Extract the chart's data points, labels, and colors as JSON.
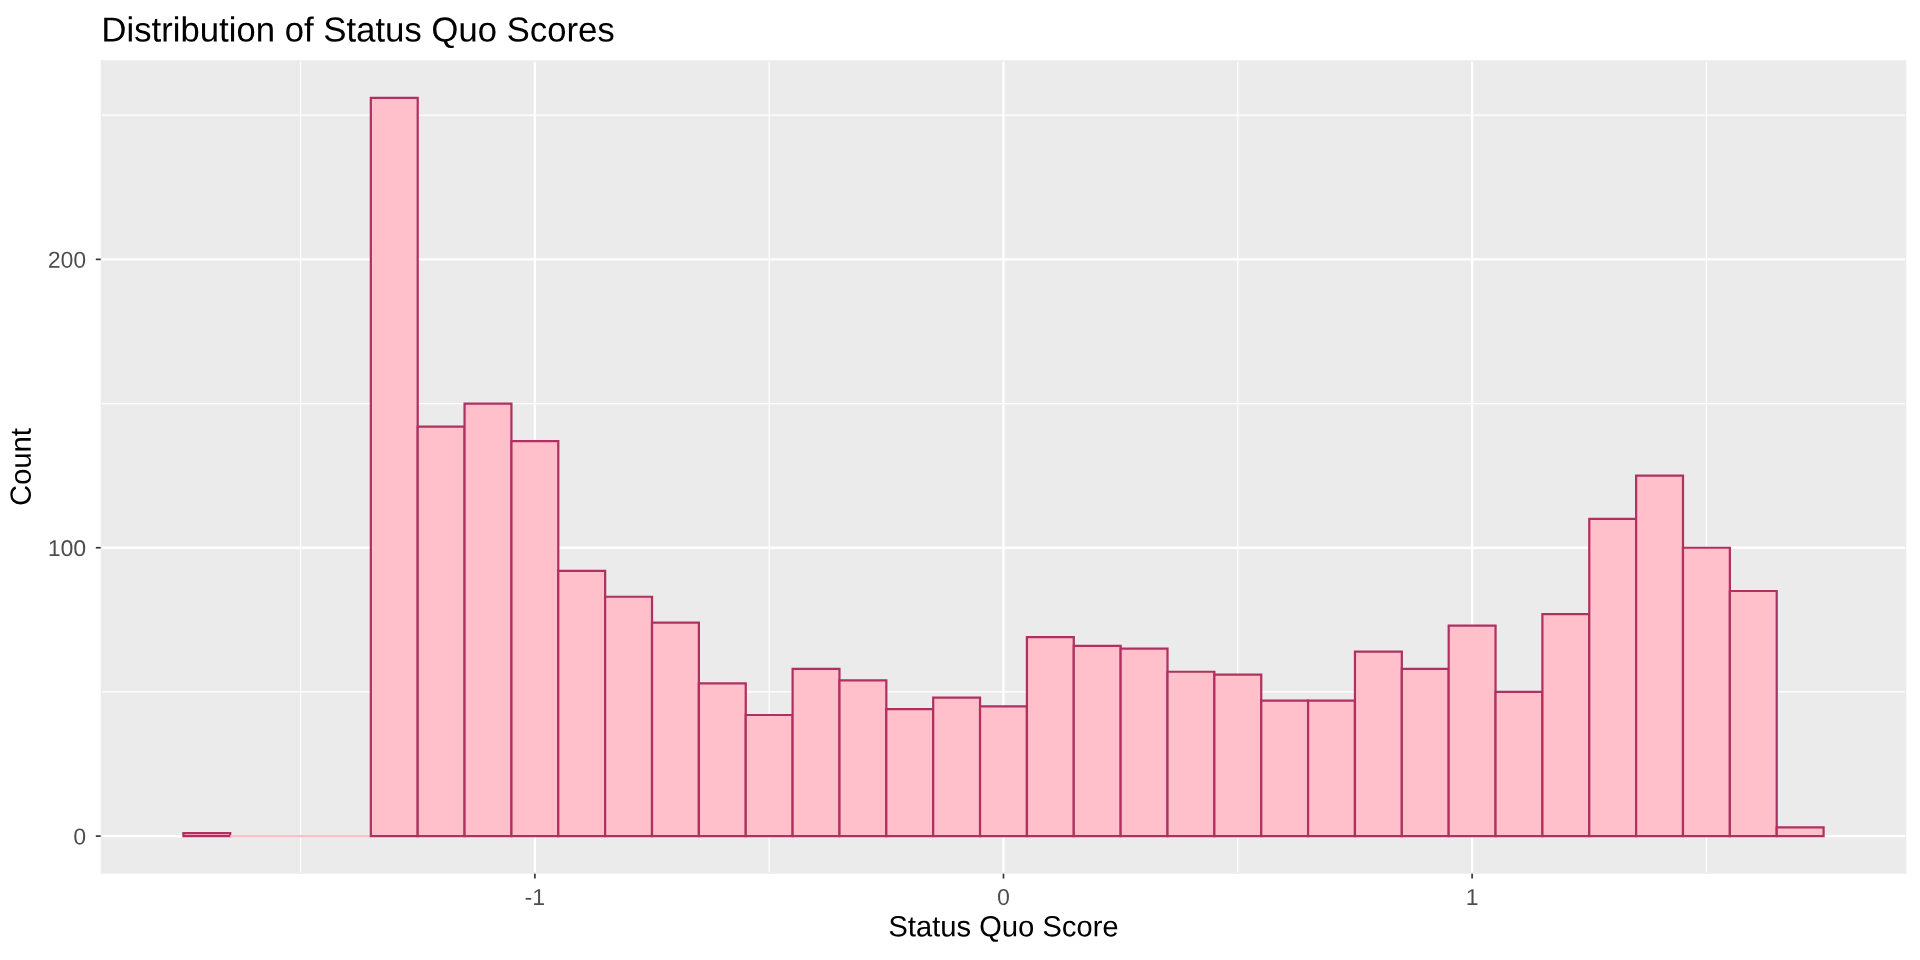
{
  "chart_data": {
    "type": "histogram",
    "title": "Distribution of Status Quo Scores",
    "xlabel": "Status Quo Score",
    "ylabel": "Count",
    "bins": [
      -1.75,
      -1.65,
      -1.55,
      -1.45,
      -1.35,
      -1.25,
      -1.15,
      -1.05,
      -0.95,
      -0.85,
      -0.75,
      -0.65,
      -0.55,
      -0.45,
      -0.35,
      -0.25,
      -0.15,
      -0.05,
      0.05,
      0.15,
      0.25,
      0.35,
      0.45,
      0.55,
      0.65,
      0.75,
      0.85,
      0.95,
      1.05,
      1.15,
      1.25,
      1.35,
      1.45,
      1.55,
      1.65,
      1.75
    ],
    "values": [
      1,
      0,
      0,
      0,
      256,
      142,
      150,
      137,
      92,
      83,
      74,
      53,
      42,
      58,
      54,
      44,
      48,
      45,
      69,
      66,
      65,
      57,
      56,
      47,
      47,
      64,
      58,
      73,
      50,
      77,
      110,
      125,
      100,
      85,
      3
    ],
    "color": "#ffc0cb",
    "xlim": [
      -1.925,
      1.925
    ],
    "xticks": [
      -1,
      0,
      1
    ],
    "ylim": [
      -12.8,
      268.8
    ],
    "yticks": [
      0,
      100,
      200
    ],
    "grid": true
  }
}
